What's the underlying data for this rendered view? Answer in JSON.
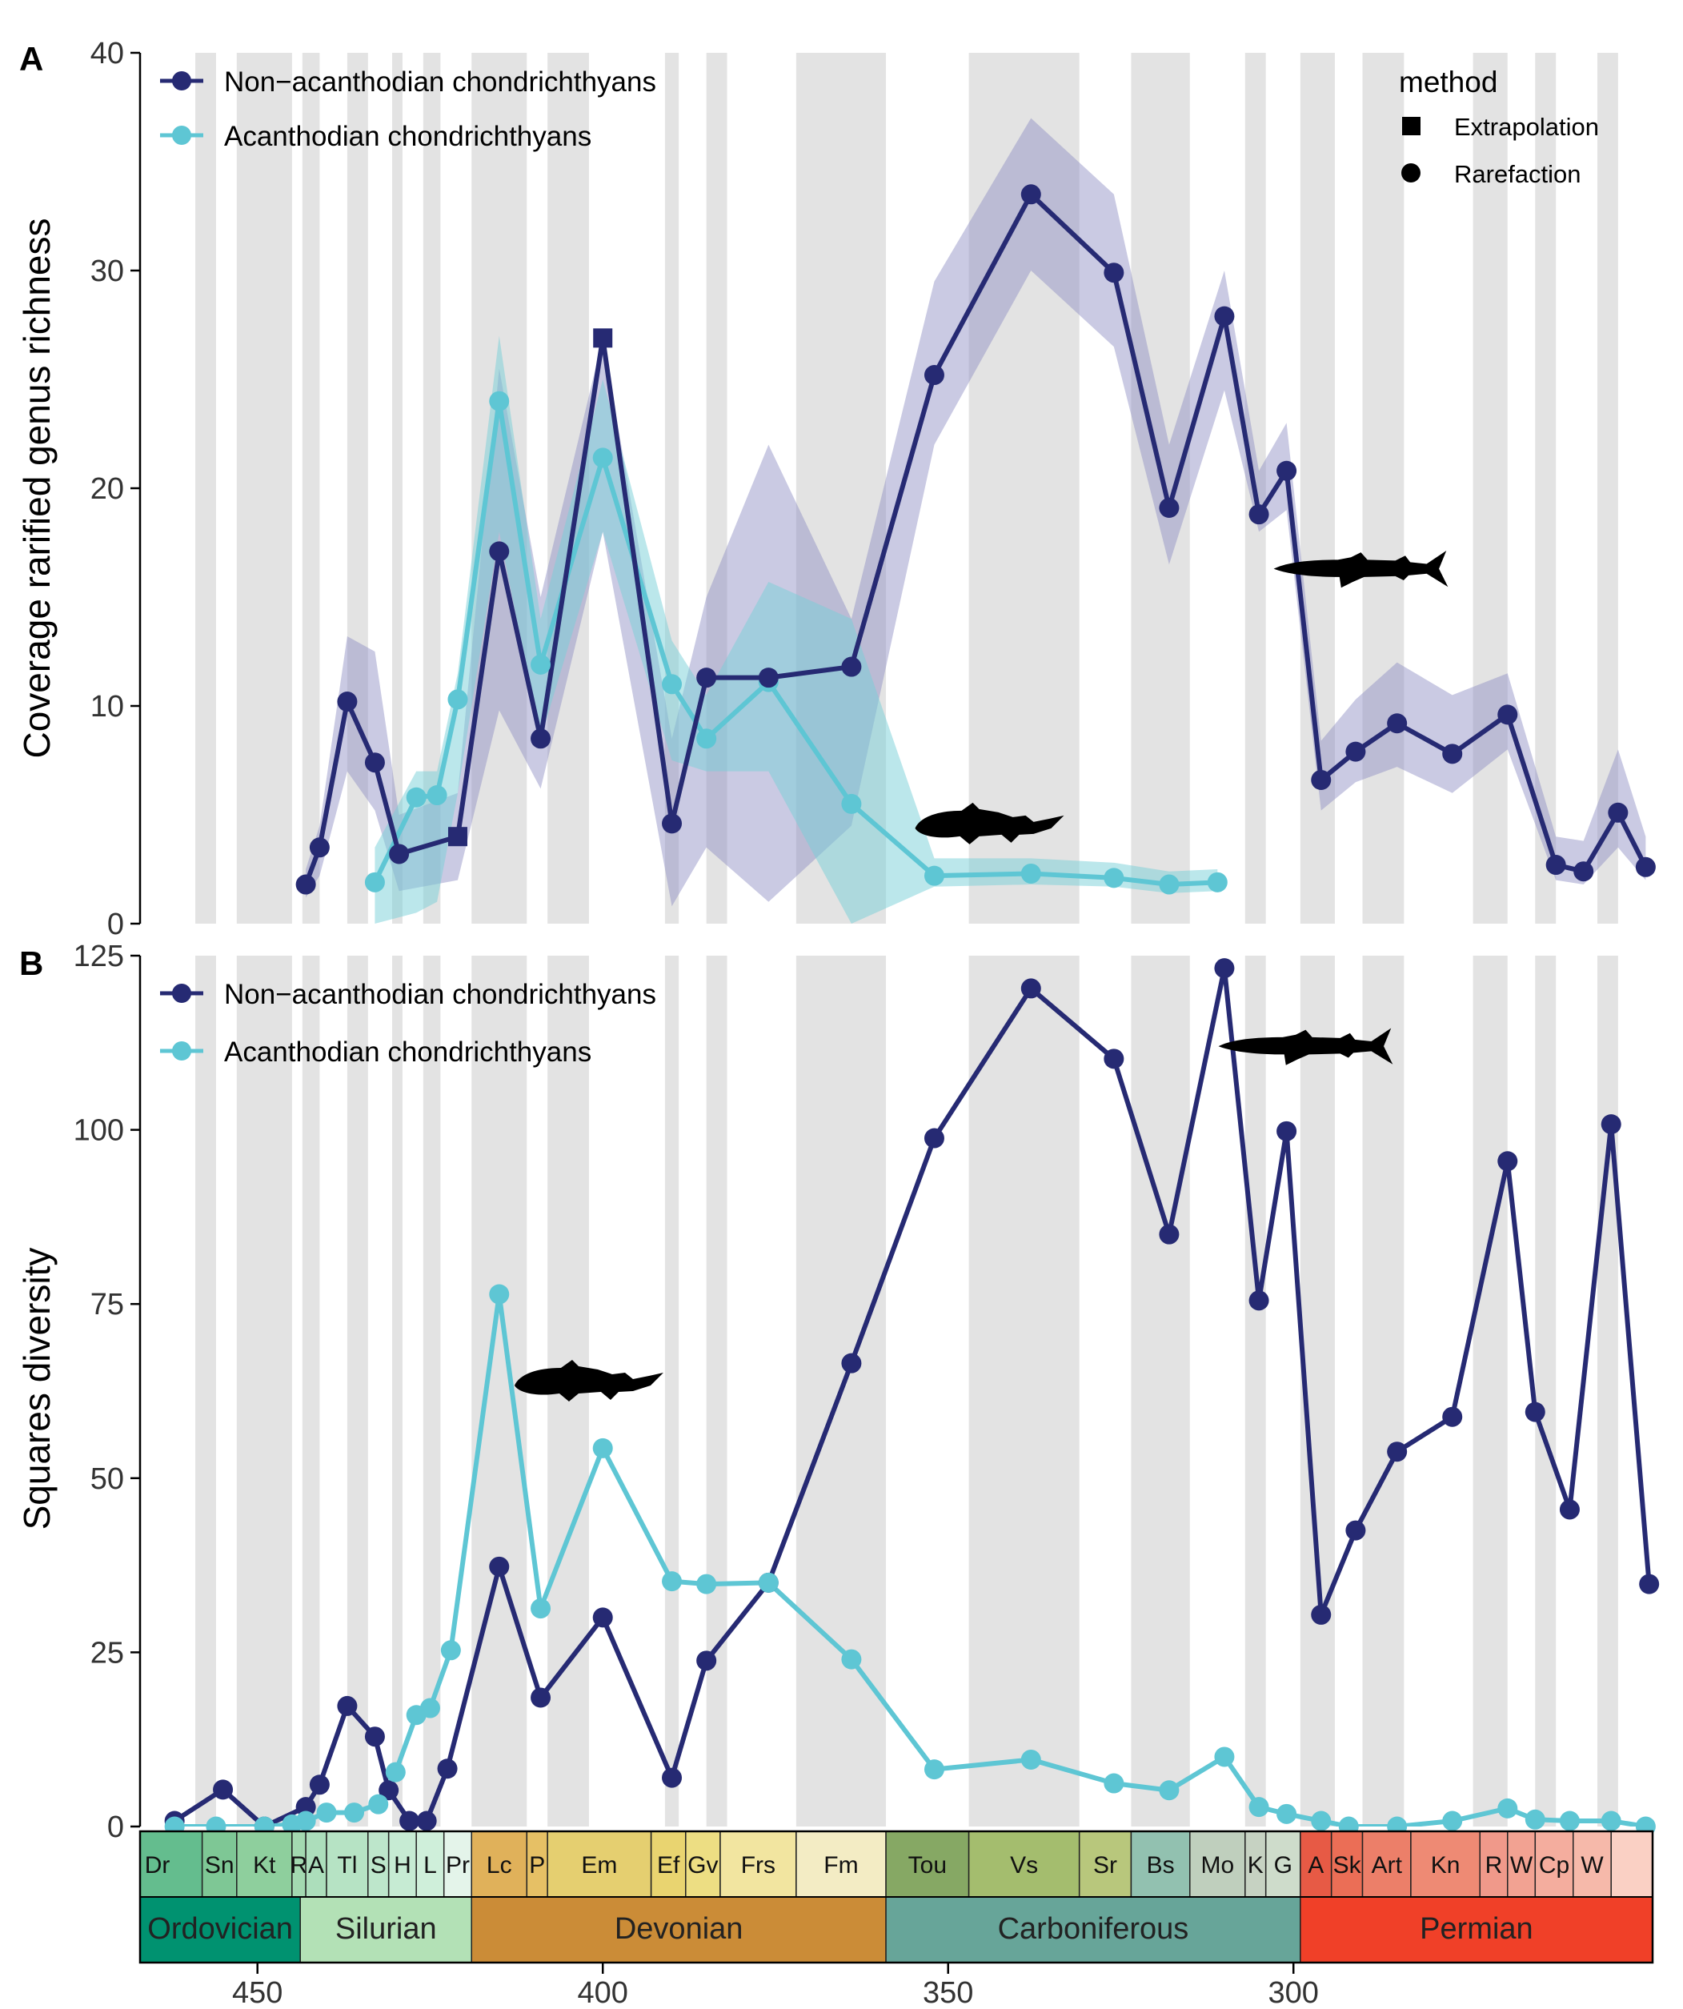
{
  "panel_a": {
    "letter": "A"
  },
  "panel_b": {
    "letter": "B"
  },
  "colors": {
    "non_acanthodian": "#262a73",
    "acanthodian": "#5ec6d4",
    "ribbon_non": "#8a8ac0",
    "ribbon_acan": "#78d0d8",
    "stripe": "#e3e3e3"
  },
  "chart_data": [
    {
      "type": "line",
      "panel": "A",
      "ylabel": "Coverage rarified genus richness",
      "ylim": [
        0,
        40
      ],
      "y_ticks": [
        "0",
        "10",
        "20",
        "30",
        "40"
      ],
      "xlim": [
        467,
        248
      ],
      "x_reversed": true,
      "legend": {
        "placement": "top-left",
        "entries": [
          "Non−acanthodian chondrichthyans",
          "Acanthodian chondrichthyans"
        ]
      },
      "method_legend": {
        "placement": "top-right",
        "title": "method",
        "entries": [
          {
            "label": "Extrapolation",
            "shape": "square"
          },
          {
            "label": "Rarefaction",
            "shape": "circle"
          }
        ]
      },
      "series": [
        {
          "name": "Non−acanthodian chondrichthyans",
          "color": "#262a73",
          "points": [
            {
              "x": 443,
              "y": 1.8,
              "lo": 1.2,
              "hi": 2.5
            },
            {
              "x": 441,
              "y": 3.5,
              "lo": 2.2,
              "hi": 4.5
            },
            {
              "x": 437,
              "y": 10.2,
              "lo": 7.0,
              "hi": 13.2
            },
            {
              "x": 433,
              "y": 7.4,
              "lo": 5.2,
              "hi": 12.5
            },
            {
              "x": 429.5,
              "y": 3.2,
              "lo": 1.5,
              "hi": 5.0
            },
            {
              "x": 421,
              "y": 4.0,
              "lo": 2.0,
              "hi": 6.0,
              "method": "extrapolation"
            },
            {
              "x": 415,
              "y": 17.1,
              "lo": 9.8,
              "hi": 25.5
            },
            {
              "x": 409,
              "y": 8.5,
              "lo": 6.2,
              "hi": 15.0
            },
            {
              "x": 400,
              "y": 26.9,
              "lo": 18.0,
              "hi": 26.9,
              "method": "extrapolation"
            },
            {
              "x": 390,
              "y": 4.6,
              "lo": 0.8,
              "hi": 8.5
            },
            {
              "x": 385,
              "y": 11.3,
              "lo": 3.5,
              "hi": 15.0
            },
            {
              "x": 376,
              "y": 11.3,
              "lo": 1.0,
              "hi": 22.0
            },
            {
              "x": 364,
              "y": 11.8,
              "lo": 4.5,
              "hi": 14.0
            },
            {
              "x": 352,
              "y": 25.2,
              "lo": 22.0,
              "hi": 29.5
            },
            {
              "x": 338,
              "y": 33.5,
              "lo": 30.0,
              "hi": 37.0
            },
            {
              "x": 326,
              "y": 29.9,
              "lo": 26.5,
              "hi": 33.5
            },
            {
              "x": 318,
              "y": 19.1,
              "lo": 16.5,
              "hi": 22.0
            },
            {
              "x": 310,
              "y": 27.9,
              "lo": 24.5,
              "hi": 30.0
            },
            {
              "x": 305,
              "y": 18.8,
              "lo": 18.0,
              "hi": 20.8
            },
            {
              "x": 301,
              "y": 20.8,
              "lo": 19.0,
              "hi": 23.0
            },
            {
              "x": 296,
              "y": 6.6,
              "lo": 5.2,
              "hi": 8.4
            },
            {
              "x": 291,
              "y": 7.9,
              "lo": 6.5,
              "hi": 10.3
            },
            {
              "x": 285,
              "y": 9.2,
              "lo": 7.2,
              "hi": 12.0
            },
            {
              "x": 277,
              "y": 7.8,
              "lo": 6.0,
              "hi": 10.5
            },
            {
              "x": 269,
              "y": 9.6,
              "lo": 8.0,
              "hi": 11.5
            },
            {
              "x": 262,
              "y": 2.7,
              "lo": 2.0,
              "hi": 4.0
            },
            {
              "x": 258,
              "y": 2.4,
              "lo": 1.8,
              "hi": 3.8
            },
            {
              "x": 253,
              "y": 5.1,
              "lo": 3.5,
              "hi": 8.0
            },
            {
              "x": 249,
              "y": 2.6,
              "lo": 2.0,
              "hi": 4.0
            }
          ]
        },
        {
          "name": "Acanthodian chondrichthyans",
          "color": "#5ec6d4",
          "points": [
            {
              "x": 433,
              "y": 1.9,
              "lo": 0.0,
              "hi": 3.5
            },
            {
              "x": 427,
              "y": 5.8,
              "lo": 0.5,
              "hi": 7.0
            },
            {
              "x": 424,
              "y": 5.9,
              "lo": 1.0,
              "hi": 7.0
            },
            {
              "x": 421,
              "y": 10.3,
              "lo": 6.0,
              "hi": 11.5
            },
            {
              "x": 415,
              "y": 24.0,
              "lo": 18.0,
              "hi": 27.0
            },
            {
              "x": 409,
              "y": 11.9,
              "lo": 8.5,
              "hi": 14.0
            },
            {
              "x": 400,
              "y": 21.4,
              "lo": 18.0,
              "hi": 25.0
            },
            {
              "x": 390,
              "y": 11.0,
              "lo": 7.5,
              "hi": 13.0
            },
            {
              "x": 385,
              "y": 8.5,
              "lo": 7.0,
              "hi": 10.5
            },
            {
              "x": 376,
              "y": 11.1,
              "lo": 7.0,
              "hi": 15.7
            },
            {
              "x": 364,
              "y": 5.5,
              "lo": 0.0,
              "hi": 14.0
            },
            {
              "x": 352,
              "y": 2.2,
              "lo": 1.7,
              "hi": 3.0
            },
            {
              "x": 338,
              "y": 2.3,
              "lo": 1.8,
              "hi": 3.0
            },
            {
              "x": 326,
              "y": 2.1,
              "lo": 1.7,
              "hi": 2.8
            },
            {
              "x": 318,
              "y": 1.8,
              "lo": 1.4,
              "hi": 2.4
            },
            {
              "x": 311,
              "y": 1.9,
              "lo": 1.5,
              "hi": 2.5
            }
          ]
        }
      ]
    },
    {
      "type": "line",
      "panel": "B",
      "ylabel": "Squares diversity",
      "ylim": [
        0,
        125
      ],
      "y_ticks": [
        "0",
        "25",
        "50",
        "75",
        "100",
        "125"
      ],
      "xlim": [
        467,
        248
      ],
      "x_reversed": true,
      "legend": {
        "placement": "top-left",
        "entries": [
          "Non−acanthodian chondrichthyans",
          "Acanthodian chondrichthyans"
        ]
      },
      "series": [
        {
          "name": "Non−acanthodian chondrichthyans",
          "color": "#262a73",
          "points": [
            {
              "x": 462,
              "y": 0.8
            },
            {
              "x": 455,
              "y": 5.3
            },
            {
              "x": 449,
              "y": 0.0
            },
            {
              "x": 443,
              "y": 2.8
            },
            {
              "x": 441,
              "y": 6.0
            },
            {
              "x": 437,
              "y": 17.3
            },
            {
              "x": 433,
              "y": 12.9
            },
            {
              "x": 431,
              "y": 5.2
            },
            {
              "x": 428,
              "y": 0.8
            },
            {
              "x": 425.5,
              "y": 0.8
            },
            {
              "x": 422.5,
              "y": 8.3
            },
            {
              "x": 415,
              "y": 37.3
            },
            {
              "x": 409,
              "y": 18.5
            },
            {
              "x": 400,
              "y": 30.0
            },
            {
              "x": 390,
              "y": 7.0
            },
            {
              "x": 385,
              "y": 23.8
            },
            {
              "x": 376,
              "y": 35.0
            },
            {
              "x": 364,
              "y": 66.5
            },
            {
              "x": 352,
              "y": 98.8
            },
            {
              "x": 338,
              "y": 120.3
            },
            {
              "x": 326,
              "y": 110.2
            },
            {
              "x": 318,
              "y": 85.0
            },
            {
              "x": 310,
              "y": 123.2
            },
            {
              "x": 305,
              "y": 75.5
            },
            {
              "x": 301,
              "y": 99.8
            },
            {
              "x": 296,
              "y": 30.4
            },
            {
              "x": 291,
              "y": 42.5
            },
            {
              "x": 285,
              "y": 53.8
            },
            {
              "x": 277,
              "y": 58.8
            },
            {
              "x": 269,
              "y": 95.5
            },
            {
              "x": 265,
              "y": 59.5
            },
            {
              "x": 260,
              "y": 45.5
            },
            {
              "x": 254,
              "y": 100.8
            },
            {
              "x": 248.5,
              "y": 34.8
            }
          ]
        },
        {
          "name": "Acanthodian chondrichthyans",
          "color": "#5ec6d4",
          "points": [
            {
              "x": 462,
              "y": 0.0
            },
            {
              "x": 456,
              "y": 0.0
            },
            {
              "x": 449,
              "y": 0.0
            },
            {
              "x": 445,
              "y": 0.3
            },
            {
              "x": 443,
              "y": 0.8
            },
            {
              "x": 440,
              "y": 2.0
            },
            {
              "x": 436,
              "y": 2.0
            },
            {
              "x": 432.5,
              "y": 3.2
            },
            {
              "x": 430,
              "y": 7.8
            },
            {
              "x": 427,
              "y": 16.0
            },
            {
              "x": 425,
              "y": 17.0
            },
            {
              "x": 422,
              "y": 25.3
            },
            {
              "x": 415,
              "y": 76.4
            },
            {
              "x": 409,
              "y": 31.3
            },
            {
              "x": 400,
              "y": 54.3
            },
            {
              "x": 390,
              "y": 35.2
            },
            {
              "x": 385,
              "y": 34.8
            },
            {
              "x": 376,
              "y": 35.0
            },
            {
              "x": 364,
              "y": 24.0
            },
            {
              "x": 352,
              "y": 8.2
            },
            {
              "x": 338,
              "y": 9.6
            },
            {
              "x": 326,
              "y": 6.2
            },
            {
              "x": 318,
              "y": 5.2
            },
            {
              "x": 310,
              "y": 10.0
            },
            {
              "x": 305,
              "y": 2.8
            },
            {
              "x": 301,
              "y": 1.8
            },
            {
              "x": 296,
              "y": 0.8
            },
            {
              "x": 292,
              "y": 0.0
            },
            {
              "x": 285,
              "y": 0.0
            },
            {
              "x": 277,
              "y": 0.8
            },
            {
              "x": 269,
              "y": 2.6
            },
            {
              "x": 265,
              "y": 1.0
            },
            {
              "x": 260,
              "y": 0.8
            },
            {
              "x": 254,
              "y": 0.8
            },
            {
              "x": 249,
              "y": 0.0
            }
          ]
        }
      ]
    }
  ],
  "x_axis": {
    "ticks": [
      {
        "value": 450,
        "label": "450"
      },
      {
        "value": 400,
        "label": "400"
      },
      {
        "value": 350,
        "label": "350"
      },
      {
        "value": 300,
        "label": "300"
      }
    ]
  },
  "shaded_stages": [
    [
      459,
      456
    ],
    [
      453,
      445
    ],
    [
      443.5,
      441
    ],
    [
      437,
      434
    ],
    [
      430.5,
      429
    ],
    [
      426,
      423.5
    ],
    [
      419,
      411
    ],
    [
      408,
      402
    ],
    [
      391,
      389
    ],
    [
      385,
      382
    ],
    [
      372,
      359
    ],
    [
      347,
      331
    ],
    [
      323.5,
      315
    ],
    [
      307,
      304
    ],
    [
      299,
      294
    ],
    [
      290,
      284
    ],
    [
      274,
      269
    ],
    [
      265,
      262
    ],
    [
      256,
      253
    ]
  ],
  "stages": [
    {
      "label": "Dr",
      "from": 471,
      "to": 458,
      "color": "#64bd8e"
    },
    {
      "label": "Sn",
      "from": 458,
      "to": 453,
      "color": "#7ec795"
    },
    {
      "label": "Kt",
      "from": 453,
      "to": 445,
      "color": "#8ecf9d"
    },
    {
      "label": "R",
      "from": 445,
      "to": 443,
      "color": "#a3d9b0"
    },
    {
      "label": "A",
      "from": 443,
      "to": 440,
      "color": "#acdebb"
    },
    {
      "label": "Tl",
      "from": 440,
      "to": 434,
      "color": "#b6e3c4"
    },
    {
      "label": "S",
      "from": 434,
      "to": 431,
      "color": "#bde6cb"
    },
    {
      "label": "H",
      "from": 431,
      "to": 427,
      "color": "#c6ebd3"
    },
    {
      "label": "L",
      "from": 427,
      "to": 423,
      "color": "#cfefda"
    },
    {
      "label": "Pr",
      "from": 423,
      "to": 419,
      "color": "#e4f4ea"
    },
    {
      "label": "Lc",
      "from": 419,
      "to": 411,
      "color": "#e0b15a"
    },
    {
      "label": "P",
      "from": 411,
      "to": 408,
      "color": "#e6c065"
    },
    {
      "label": "Em",
      "from": 408,
      "to": 393,
      "color": "#e5cf70"
    },
    {
      "label": "Ef",
      "from": 393,
      "to": 388,
      "color": "#e9d470"
    },
    {
      "label": "Gv",
      "from": 388,
      "to": 383,
      "color": "#edde83"
    },
    {
      "label": "Frs",
      "from": 383,
      "to": 372,
      "color": "#f2e5a0"
    },
    {
      "label": "Fm",
      "from": 372,
      "to": 359,
      "color": "#f3ecc4"
    },
    {
      "label": "Tou",
      "from": 359,
      "to": 347,
      "color": "#86a864"
    },
    {
      "label": "Vs",
      "from": 347,
      "to": 331,
      "color": "#a4bd6e"
    },
    {
      "label": "Sr",
      "from": 331,
      "to": 323.5,
      "color": "#b8c77c"
    },
    {
      "label": "Bs",
      "from": 323.5,
      "to": 315,
      "color": "#92c1b0"
    },
    {
      "label": "Mo",
      "from": 315,
      "to": 307,
      "color": "#bfcfbd"
    },
    {
      "label": "K",
      "from": 307,
      "to": 304,
      "color": "#c6d2c2"
    },
    {
      "label": "G",
      "from": 304,
      "to": 299,
      "color": "#cedccb"
    },
    {
      "label": "A",
      "from": 299,
      "to": 294.5,
      "color": "#e75a45"
    },
    {
      "label": "Sk",
      "from": 294.5,
      "to": 290,
      "color": "#eb6e56"
    },
    {
      "label": "Art",
      "from": 290,
      "to": 283,
      "color": "#ec7f69"
    },
    {
      "label": "Kn",
      "from": 283,
      "to": 273,
      "color": "#ee8a74"
    },
    {
      "label": "R",
      "from": 273,
      "to": 269,
      "color": "#f0998a"
    },
    {
      "label": "W",
      "from": 269,
      "to": 265,
      "color": "#f2a292"
    },
    {
      "label": "Cp",
      "from": 265,
      "to": 259.5,
      "color": "#f4ad9e"
    },
    {
      "label": "W",
      "from": 259.5,
      "to": 254,
      "color": "#f6b9aa"
    },
    {
      "label": "",
      "from": 254,
      "to": 248,
      "color": "#fad0c4"
    }
  ],
  "periods": [
    {
      "label": "Ordovician",
      "from": 487,
      "to": 443.8,
      "color": "#009270"
    },
    {
      "label": "Silurian",
      "from": 443.8,
      "to": 419,
      "color": "#b3e1b6"
    },
    {
      "label": "Devonian",
      "from": 419,
      "to": 359,
      "color": "#cb8c37"
    },
    {
      "label": "Carboniferous",
      "from": 359,
      "to": 299,
      "color": "#67a599"
    },
    {
      "label": "Permian",
      "from": 299,
      "to": 248,
      "color": "#f04028"
    }
  ],
  "silhouettes": [
    {
      "panel": "A",
      "icon": "shark-silhouette-icon",
      "x": 290,
      "y": 16.3
    },
    {
      "panel": "A",
      "icon": "acanthodian-fish-silhouette-icon",
      "x": 344,
      "y": 4.6
    },
    {
      "panel": "B",
      "icon": "shark-silhouette-icon",
      "x": 298,
      "y": 112
    },
    {
      "panel": "B",
      "icon": "acanthodian-fish-silhouette-icon",
      "x": 402,
      "y": 64
    }
  ]
}
